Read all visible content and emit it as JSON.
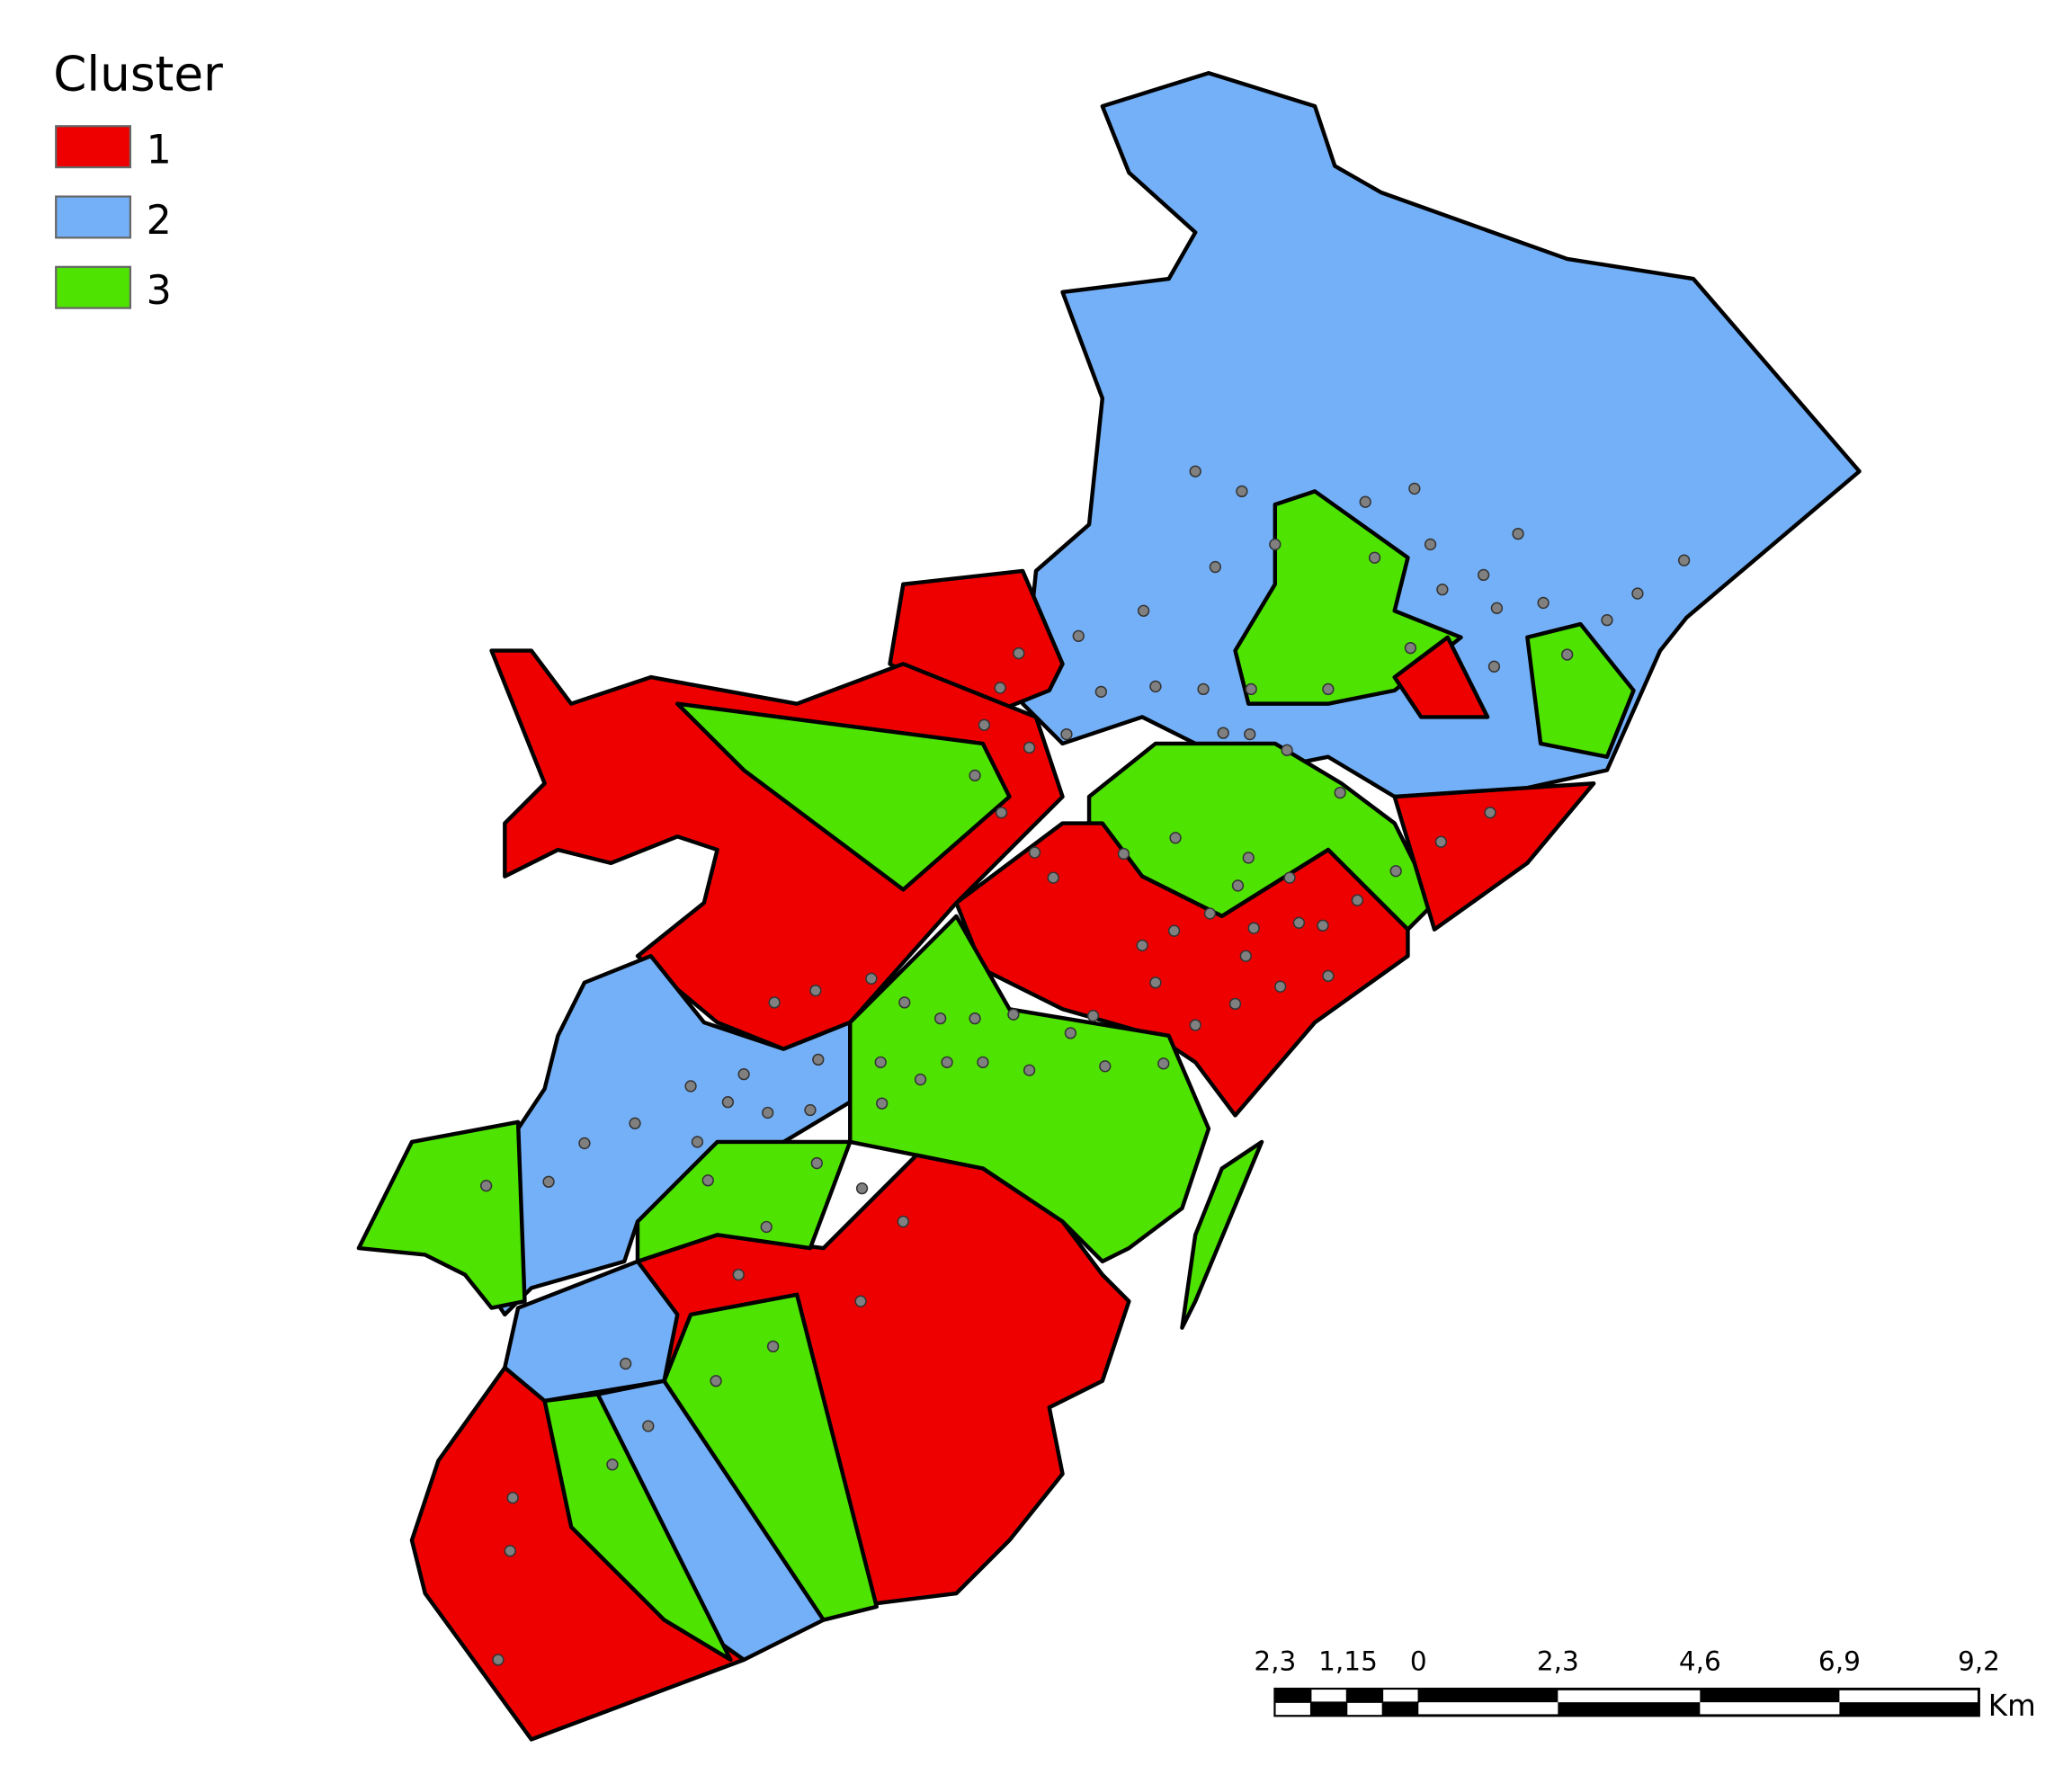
{
  "legend": {
    "title": "Cluster",
    "items": [
      {
        "label": "1",
        "color": "#ee0000"
      },
      {
        "label": "2",
        "color": "#74b0f7"
      },
      {
        "label": "3",
        "color": "#4ee300"
      }
    ]
  },
  "scale_bar": {
    "labels": [
      "2,3",
      "1,15",
      "0",
      "2,3",
      "4,6",
      "6,9",
      "9,2"
    ],
    "unit": "Km"
  }
}
